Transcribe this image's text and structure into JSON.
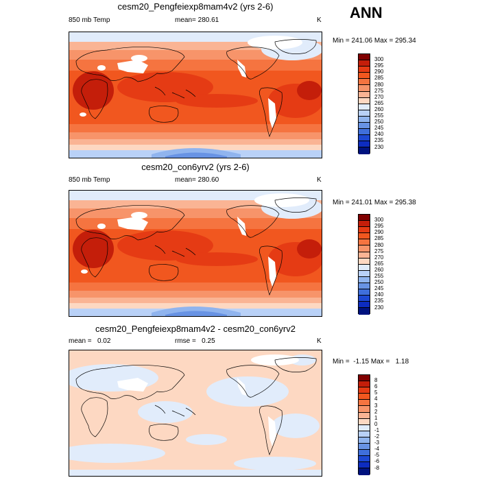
{
  "season": "ANN",
  "panels": [
    {
      "title": "cesm20_Pengfeiexp8mam4v2 (yrs 2-6)",
      "left_label": "850 mb Temp",
      "center_label": "mean= 280.61",
      "units": "K",
      "minmax": "Min = 241.06 Max = 295.34",
      "colorbar": {
        "labels": [
          "300",
          "295",
          "290",
          "285",
          "280",
          "275",
          "270",
          "265",
          "260",
          "255",
          "250",
          "245",
          "240",
          "235",
          "230"
        ],
        "colors": [
          "#800000",
          "#c41e0a",
          "#e53b14",
          "#f1571f",
          "#f57440",
          "#f7946a",
          "#fab494",
          "#fdd8c2",
          "#e1ecfb",
          "#b9d1f7",
          "#90b4ee",
          "#6893e4",
          "#3f6fdb",
          "#1d48d2",
          "#0d2cc0",
          "#00127f"
        ]
      }
    },
    {
      "title": "cesm20_con6yrv2 (yrs 2-6)",
      "left_label": "850 mb Temp",
      "center_label": "mean= 280.60",
      "units": "K",
      "minmax": "Min = 241.01 Max = 295.38",
      "colorbar": {
        "labels": [
          "300",
          "295",
          "290",
          "285",
          "280",
          "275",
          "270",
          "265",
          "260",
          "255",
          "250",
          "245",
          "240",
          "235",
          "230"
        ],
        "colors": [
          "#800000",
          "#c41e0a",
          "#e53b14",
          "#f1571f",
          "#f57440",
          "#f7946a",
          "#fab494",
          "#fdd8c2",
          "#e1ecfb",
          "#b9d1f7",
          "#90b4ee",
          "#6893e4",
          "#3f6fdb",
          "#1d48d2",
          "#0d2cc0",
          "#00127f"
        ]
      }
    },
    {
      "title": "cesm20_Pengfeiexp8mam4v2 - cesm20_con6yrv2",
      "left_label": "mean =   0.02",
      "center_label": "rmse =   0.25",
      "units": "K",
      "minmax": "Min =  -1.15 Max =   1.18",
      "colorbar": {
        "labels": [
          "8",
          "6",
          "5",
          "4",
          "3",
          "2",
          "1",
          "0",
          "-1",
          "-2",
          "-3",
          "-4",
          "-5",
          "-6",
          "-8"
        ],
        "colors": [
          "#800000",
          "#c41e0a",
          "#e53b14",
          "#f1571f",
          "#f57440",
          "#f7946a",
          "#fab494",
          "#fdd8c2",
          "#e1ecfb",
          "#b9d1f7",
          "#90b4ee",
          "#6893e4",
          "#3f6fdb",
          "#1d48d2",
          "#0d2cc0",
          "#00127f"
        ]
      }
    }
  ]
}
